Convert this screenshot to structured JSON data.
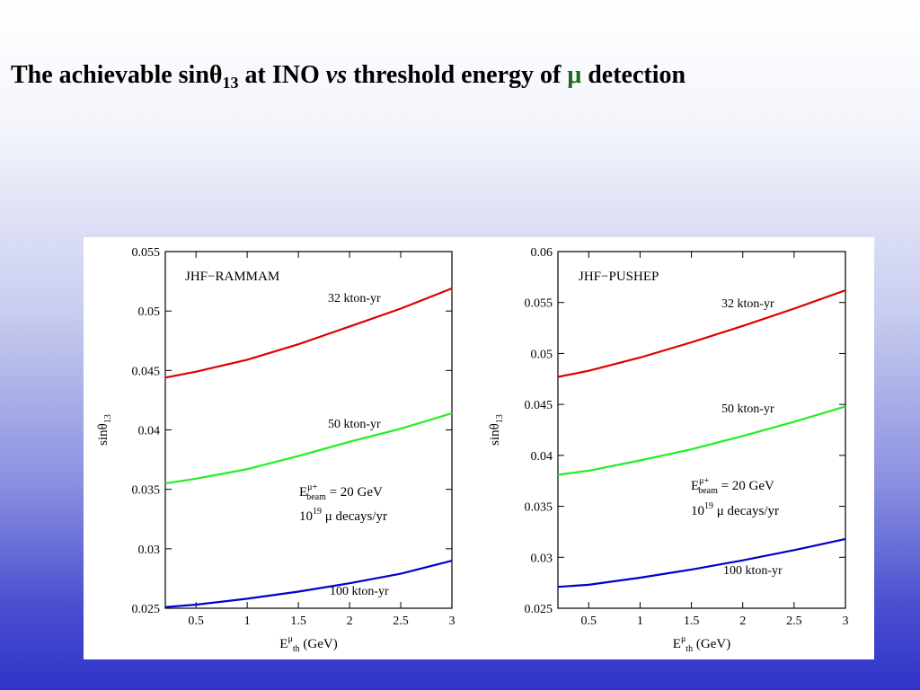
{
  "title": {
    "part1": "The achievable sin",
    "theta": "θ",
    "sub": "13",
    "part2": " at INO ",
    "vs": "vs",
    "part3": " threshold energy of ",
    "mu": "μ",
    "part4": " detection"
  },
  "chart_data": [
    {
      "type": "line",
      "title": "JHF−RAMMAM",
      "xlabel": "E^μ_th (GeV)",
      "ylabel": "sinθ_13",
      "xlim": [
        0.2,
        3.0
      ],
      "ylim": [
        0.025,
        0.055
      ],
      "xticks": [
        0.5,
        1,
        1.5,
        2,
        2.5,
        3
      ],
      "xtick_labels": [
        "0.5",
        "1",
        "1.5",
        "2",
        "2.5",
        "3"
      ],
      "yticks": [
        0.025,
        0.03,
        0.035,
        0.04,
        0.045,
        0.05,
        0.055
      ],
      "ytick_labels": [
        "0.025",
        "0.03",
        "0.035",
        "0.04",
        "0.045",
        "0.05",
        "0.055"
      ],
      "grid": false,
      "annotation": {
        "line1_pre": "E",
        "line1_sup": "μ+",
        "line1_sub": "beam",
        "line1_post": " = 20 GeV",
        "line2_pre": "10",
        "line2_sup": "19",
        "line2_post": " μ decays/yr"
      },
      "series": [
        {
          "name": "32 kton-yr",
          "color": "#dd0000",
          "x": [
            0.2,
            0.5,
            1.0,
            1.5,
            2.0,
            2.5,
            3.0
          ],
          "y": [
            0.0444,
            0.0449,
            0.0459,
            0.0472,
            0.0487,
            0.0502,
            0.0519
          ]
        },
        {
          "name": "50 kton-yr",
          "color": "#22ee22",
          "x": [
            0.2,
            0.5,
            1.0,
            1.5,
            2.0,
            2.5,
            3.0
          ],
          "y": [
            0.0355,
            0.0359,
            0.0367,
            0.0378,
            0.039,
            0.0401,
            0.0414
          ]
        },
        {
          "name": "100 kton-yr",
          "color": "#0000cc",
          "x": [
            0.2,
            0.5,
            1.0,
            1.5,
            2.0,
            2.5,
            3.0
          ],
          "y": [
            0.0251,
            0.0253,
            0.0258,
            0.0264,
            0.0271,
            0.0279,
            0.029
          ]
        }
      ]
    },
    {
      "type": "line",
      "title": "JHF−PUSHEP",
      "xlabel": "E^μ_th (GeV)",
      "ylabel": "sinθ_13",
      "xlim": [
        0.2,
        3.0
      ],
      "ylim": [
        0.025,
        0.06
      ],
      "xticks": [
        0.5,
        1,
        1.5,
        2,
        2.5,
        3
      ],
      "xtick_labels": [
        "0.5",
        "1",
        "1.5",
        "2",
        "2.5",
        "3"
      ],
      "yticks": [
        0.025,
        0.03,
        0.035,
        0.04,
        0.045,
        0.05,
        0.055,
        0.06
      ],
      "ytick_labels": [
        "0.025",
        "0.03",
        "0.035",
        "0.04",
        "0.045",
        "0.05",
        "0.055",
        "0.06"
      ],
      "grid": false,
      "annotation": {
        "line1_pre": "E",
        "line1_sup": "μ+",
        "line1_sub": "beam",
        "line1_post": " = 20 GeV",
        "line2_pre": "10",
        "line2_sup": "19",
        "line2_post": " μ decays/yr"
      },
      "series": [
        {
          "name": "32 kton-yr",
          "color": "#dd0000",
          "x": [
            0.2,
            0.5,
            1.0,
            1.5,
            2.0,
            2.5,
            3.0
          ],
          "y": [
            0.0477,
            0.0483,
            0.0496,
            0.0511,
            0.0527,
            0.0544,
            0.0562
          ]
        },
        {
          "name": "50 kton-yr",
          "color": "#22ee22",
          "x": [
            0.2,
            0.5,
            1.0,
            1.5,
            2.0,
            2.5,
            3.0
          ],
          "y": [
            0.0381,
            0.0385,
            0.0395,
            0.0406,
            0.0419,
            0.0433,
            0.0448
          ]
        },
        {
          "name": "100 kton-yr",
          "color": "#0000cc",
          "x": [
            0.2,
            0.5,
            1.0,
            1.5,
            2.0,
            2.5,
            3.0
          ],
          "y": [
            0.0271,
            0.0273,
            0.028,
            0.0288,
            0.0297,
            0.0307,
            0.0318
          ]
        }
      ]
    }
  ]
}
